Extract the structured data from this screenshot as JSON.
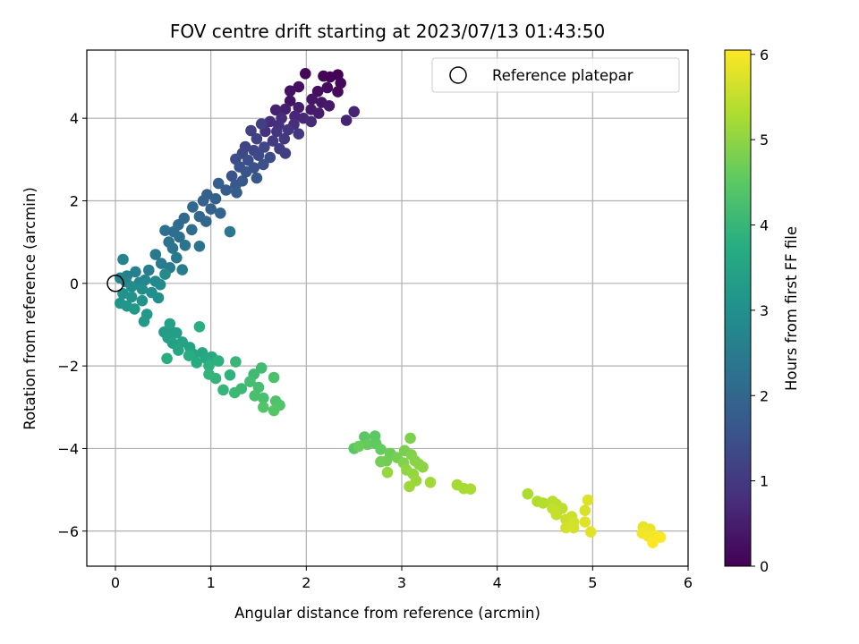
{
  "chart_data": {
    "type": "scatter",
    "title": "FOV centre drift starting at 2023/07/13 01:43:50",
    "xlabel": "Angular distance from reference (arcmin)",
    "ylabel": "Rotation from reference (arcmin)",
    "xlim": [
      -0.3,
      6.0
    ],
    "ylim": [
      -6.85,
      5.65
    ],
    "xticks": [
      0,
      1,
      2,
      3,
      4,
      5,
      6
    ],
    "yticks": [
      -6,
      -4,
      -2,
      0,
      2,
      4
    ],
    "grid": true,
    "legend": {
      "placement": "top-right",
      "entries": [
        "Reference platepar"
      ]
    },
    "reference_point": {
      "x": 0,
      "y": 0,
      "label": "Reference platepar"
    },
    "colorbar": {
      "label": "Hours from first FF file",
      "colormap": "viridis",
      "range": [
        0,
        6.05
      ],
      "ticks": [
        0,
        1,
        2,
        3,
        4,
        5,
        6
      ]
    },
    "series": [
      {
        "points": [
          [
            2.33,
            5.05
          ],
          [
            2.25,
            5.0
          ],
          [
            2.18,
            5.02
          ],
          [
            1.99,
            5.08
          ],
          [
            2.36,
            4.85
          ],
          [
            2.33,
            4.64
          ],
          [
            2.22,
            4.74
          ],
          [
            2.12,
            4.65
          ],
          [
            1.92,
            4.76
          ],
          [
            1.83,
            4.66
          ],
          [
            1.83,
            4.42
          ],
          [
            2.06,
            4.46
          ],
          [
            2.16,
            4.38
          ],
          [
            2.24,
            4.3
          ],
          [
            2.05,
            4.21
          ],
          [
            2.13,
            4.12
          ],
          [
            1.92,
            4.26
          ],
          [
            1.78,
            4.22
          ],
          [
            1.68,
            4.2
          ],
          [
            2.42,
            3.95
          ],
          [
            2.5,
            4.16
          ],
          [
            1.88,
            4.05
          ],
          [
            1.97,
            4.0
          ],
          [
            2.05,
            3.92
          ],
          [
            1.74,
            4.0
          ],
          [
            1.62,
            3.92
          ],
          [
            1.87,
            3.85
          ],
          [
            1.71,
            3.83
          ],
          [
            1.57,
            3.68
          ],
          [
            1.69,
            3.68
          ],
          [
            1.81,
            3.72
          ],
          [
            1.92,
            3.62
          ],
          [
            1.77,
            3.5
          ],
          [
            1.65,
            3.45
          ],
          [
            1.72,
            3.26
          ],
          [
            1.78,
            3.15
          ],
          [
            1.53,
            3.86
          ],
          [
            1.42,
            3.7
          ],
          [
            1.48,
            3.5
          ],
          [
            1.36,
            3.31
          ],
          [
            1.45,
            3.22
          ],
          [
            1.56,
            3.3
          ],
          [
            1.33,
            3.15
          ],
          [
            1.5,
            3.1
          ],
          [
            1.62,
            3.05
          ],
          [
            1.26,
            3.01
          ],
          [
            1.39,
            2.98
          ],
          [
            1.55,
            2.88
          ],
          [
            1.45,
            2.8
          ],
          [
            1.3,
            2.82
          ],
          [
            1.22,
            2.6
          ],
          [
            1.37,
            2.7
          ],
          [
            1.48,
            2.55
          ],
          [
            1.33,
            2.48
          ],
          [
            1.26,
            2.38
          ],
          [
            1.16,
            2.26
          ],
          [
            1.27,
            2.2
          ],
          [
            1.08,
            2.42
          ],
          [
            0.96,
            2.15
          ],
          [
            1.05,
            2.05
          ],
          [
            0.92,
            2.0
          ],
          [
            1.0,
            1.8
          ],
          [
            1.1,
            1.7
          ],
          [
            0.88,
            1.62
          ],
          [
            0.95,
            1.5
          ],
          [
            0.81,
            1.85
          ],
          [
            0.72,
            1.58
          ],
          [
            0.66,
            1.42
          ],
          [
            0.8,
            1.3
          ],
          [
            0.61,
            1.25
          ],
          [
            0.52,
            1.28
          ],
          [
            0.67,
            1.12
          ],
          [
            0.56,
            1.0
          ],
          [
            0.73,
            0.92
          ],
          [
            0.88,
            0.9
          ],
          [
            0.6,
            0.85
          ],
          [
            1.2,
            1.25
          ],
          [
            0.42,
            0.7
          ],
          [
            0.64,
            0.62
          ],
          [
            0.48,
            0.48
          ],
          [
            0.57,
            0.38
          ],
          [
            0.7,
            0.33
          ],
          [
            0.35,
            0.32
          ],
          [
            0.21,
            0.28
          ],
          [
            0.12,
            0.18
          ],
          [
            0.08,
            0.58
          ],
          [
            0.05,
            0.13
          ],
          [
            0.11,
            0.04
          ],
          [
            0.25,
            0.02
          ],
          [
            0.31,
            0.08
          ],
          [
            0.42,
            0.05
          ],
          [
            0.52,
            0.22
          ],
          [
            0.47,
            -0.03
          ],
          [
            0.17,
            -0.08
          ],
          [
            0.28,
            -0.14
          ],
          [
            0.38,
            -0.22
          ],
          [
            0.45,
            -0.35
          ],
          [
            0.08,
            -0.25
          ],
          [
            0.17,
            -0.33
          ],
          [
            0.28,
            -0.42
          ],
          [
            0.05,
            -0.48
          ],
          [
            0.12,
            -0.55
          ],
          [
            0.2,
            -0.62
          ],
          [
            0.33,
            -0.75
          ],
          [
            0.3,
            -0.92
          ],
          [
            0.51,
            -1.18
          ],
          [
            0.58,
            -1.15
          ],
          [
            0.64,
            -1.2
          ],
          [
            0.55,
            -1.32
          ],
          [
            0.6,
            -1.45
          ],
          [
            0.57,
            -0.98
          ],
          [
            0.7,
            -1.42
          ],
          [
            0.78,
            -1.55
          ],
          [
            0.66,
            -1.62
          ],
          [
            0.82,
            -1.72
          ],
          [
            0.91,
            -1.68
          ],
          [
            0.95,
            -1.82
          ],
          [
            1.01,
            -1.78
          ],
          [
            0.85,
            -1.92
          ],
          [
            0.77,
            -1.75
          ],
          [
            0.54,
            -1.82
          ],
          [
            0.88,
            -1.05
          ],
          [
            1.08,
            -1.88
          ],
          [
            0.98,
            -2.0
          ],
          [
            1.2,
            -2.22
          ],
          [
            0.98,
            -2.2
          ],
          [
            1.05,
            -2.3
          ],
          [
            1.13,
            -2.58
          ],
          [
            1.26,
            -1.9
          ],
          [
            1.25,
            -2.65
          ],
          [
            1.32,
            -2.55
          ],
          [
            1.45,
            -2.2
          ],
          [
            1.53,
            -2.05
          ],
          [
            1.41,
            -2.38
          ],
          [
            1.5,
            -2.52
          ],
          [
            1.46,
            -2.72
          ],
          [
            1.55,
            -2.78
          ],
          [
            1.66,
            -2.28
          ],
          [
            1.68,
            -2.85
          ],
          [
            1.72,
            -2.95
          ],
          [
            1.55,
            -3.0
          ],
          [
            1.66,
            -3.08
          ],
          [
            2.5,
            -4.0
          ],
          [
            2.61,
            -3.72
          ],
          [
            2.72,
            -3.7
          ],
          [
            2.73,
            -3.88
          ],
          [
            2.64,
            -3.9
          ],
          [
            2.78,
            -4.02
          ],
          [
            2.55,
            -3.95
          ],
          [
            2.88,
            -4.12
          ],
          [
            2.84,
            -4.3
          ],
          [
            2.78,
            -4.32
          ],
          [
            2.95,
            -4.22
          ],
          [
            3.03,
            -4.05
          ],
          [
            3.09,
            -3.75
          ],
          [
            3.1,
            -4.15
          ],
          [
            3.02,
            -4.35
          ],
          [
            3.14,
            -4.3
          ],
          [
            3.18,
            -4.38
          ],
          [
            3.22,
            -4.45
          ],
          [
            3.05,
            -4.52
          ],
          [
            3.12,
            -4.62
          ],
          [
            2.85,
            -4.58
          ],
          [
            3.15,
            -4.78
          ],
          [
            3.08,
            -4.92
          ],
          [
            3.3,
            -4.82
          ],
          [
            3.58,
            -4.88
          ],
          [
            3.65,
            -4.97
          ],
          [
            3.72,
            -4.98
          ],
          [
            4.32,
            -5.1
          ],
          [
            4.42,
            -5.28
          ],
          [
            4.48,
            -5.32
          ],
          [
            4.58,
            -5.28
          ],
          [
            4.62,
            -5.35
          ],
          [
            4.68,
            -5.45
          ],
          [
            4.58,
            -5.45
          ],
          [
            4.62,
            -5.6
          ],
          [
            4.72,
            -5.72
          ],
          [
            4.78,
            -5.65
          ],
          [
            4.8,
            -5.78
          ],
          [
            4.72,
            -5.92
          ],
          [
            4.8,
            -5.92
          ],
          [
            4.92,
            -5.5
          ],
          [
            4.95,
            -5.25
          ],
          [
            4.92,
            -5.78
          ],
          [
            4.98,
            -6.02
          ],
          [
            5.53,
            -5.9
          ],
          [
            5.6,
            -5.95
          ],
          [
            5.57,
            -6.02
          ],
          [
            5.52,
            -6.05
          ],
          [
            5.58,
            -6.12
          ],
          [
            5.66,
            -6.12
          ],
          [
            5.71,
            -6.15
          ],
          [
            5.63,
            -6.28
          ]
        ]
      }
    ]
  }
}
